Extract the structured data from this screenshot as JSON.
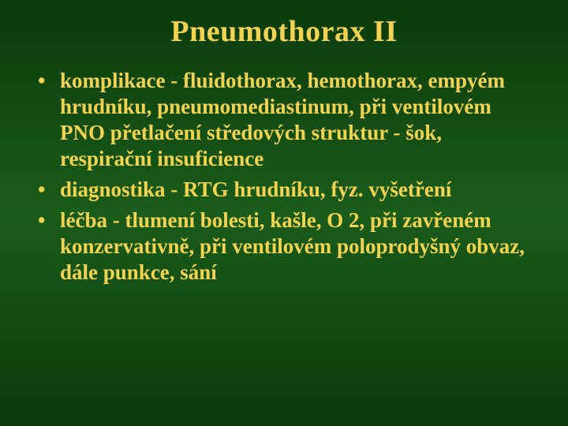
{
  "slide": {
    "title": "Pneumothorax II",
    "title_color": "#f5d352",
    "background_gradient": [
      "#0a3a0a",
      "#1a5c1a",
      "#0a3a0a"
    ],
    "font_family": "Times New Roman",
    "title_fontsize": 38,
    "body_fontsize": 27,
    "text_color": "#f5d352",
    "bullets": [
      "komplikace - fluidothorax, hemothorax, empyém hrudníku, pneumomediastinum, při ventilovém PNO přetlačení středových struktur - šok, respirační insuficience",
      "diagnostika - RTG hrudníku, fyz. vyšetření",
      "léčba - tlumení bolesti, kašle, O 2, při zavřeném konzervativně, při ventilovém poloprodyšný obvaz, dále punkce, sání"
    ]
  }
}
